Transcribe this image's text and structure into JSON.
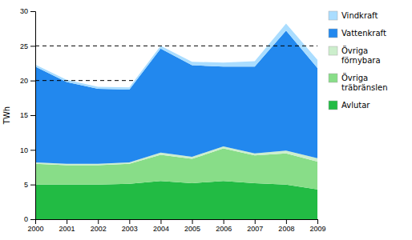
{
  "chart_data": {
    "type": "area",
    "stacked": true,
    "ylabel": "TWh",
    "x": [
      2000,
      2001,
      2002,
      2003,
      2004,
      2005,
      2006,
      2007,
      2008,
      2009
    ],
    "xlim": [
      2000,
      2009
    ],
    "xticks": [
      2000,
      2001,
      2002,
      2003,
      2004,
      2005,
      2006,
      2007,
      2008,
      2009
    ],
    "ylim": [
      0,
      30
    ],
    "yticks": [
      0,
      5,
      10,
      15,
      20,
      25,
      30
    ],
    "grid": false,
    "legend": "right",
    "series": [
      {
        "name": "Avlutar",
        "color": "#22bb44",
        "values": [
          5.0,
          5.0,
          5.0,
          5.1,
          5.5,
          5.2,
          5.5,
          5.2,
          5.0,
          4.3
        ]
      },
      {
        "name": "Övriga\nträbränslen",
        "color": "#88dd88",
        "values": [
          3.0,
          2.8,
          2.8,
          2.9,
          3.8,
          3.5,
          4.7,
          4.0,
          4.5,
          4.0
        ]
      },
      {
        "name": "Övriga\nförnybara",
        "color": "#cceecc",
        "values": [
          0.2,
          0.2,
          0.2,
          0.2,
          0.3,
          0.3,
          0.3,
          0.3,
          0.4,
          0.5
        ]
      },
      {
        "name": "Vattenkraft",
        "color": "#2288ee",
        "values": [
          13.8,
          11.8,
          10.8,
          10.5,
          15.0,
          13.2,
          11.5,
          12.5,
          17.3,
          13.0
        ]
      },
      {
        "name": "Vindkraft",
        "color": "#aaddff",
        "values": [
          0.3,
          0.3,
          0.3,
          0.3,
          0.4,
          0.5,
          0.6,
          0.8,
          1.0,
          1.2
        ]
      }
    ],
    "reference_lines": [
      {
        "y": 25,
        "color": "#000000",
        "line_style": "dashed"
      },
      {
        "y": 20,
        "x": [
          2000,
          2003.2
        ],
        "color": "#000000",
        "line_style": "dashed"
      }
    ]
  }
}
